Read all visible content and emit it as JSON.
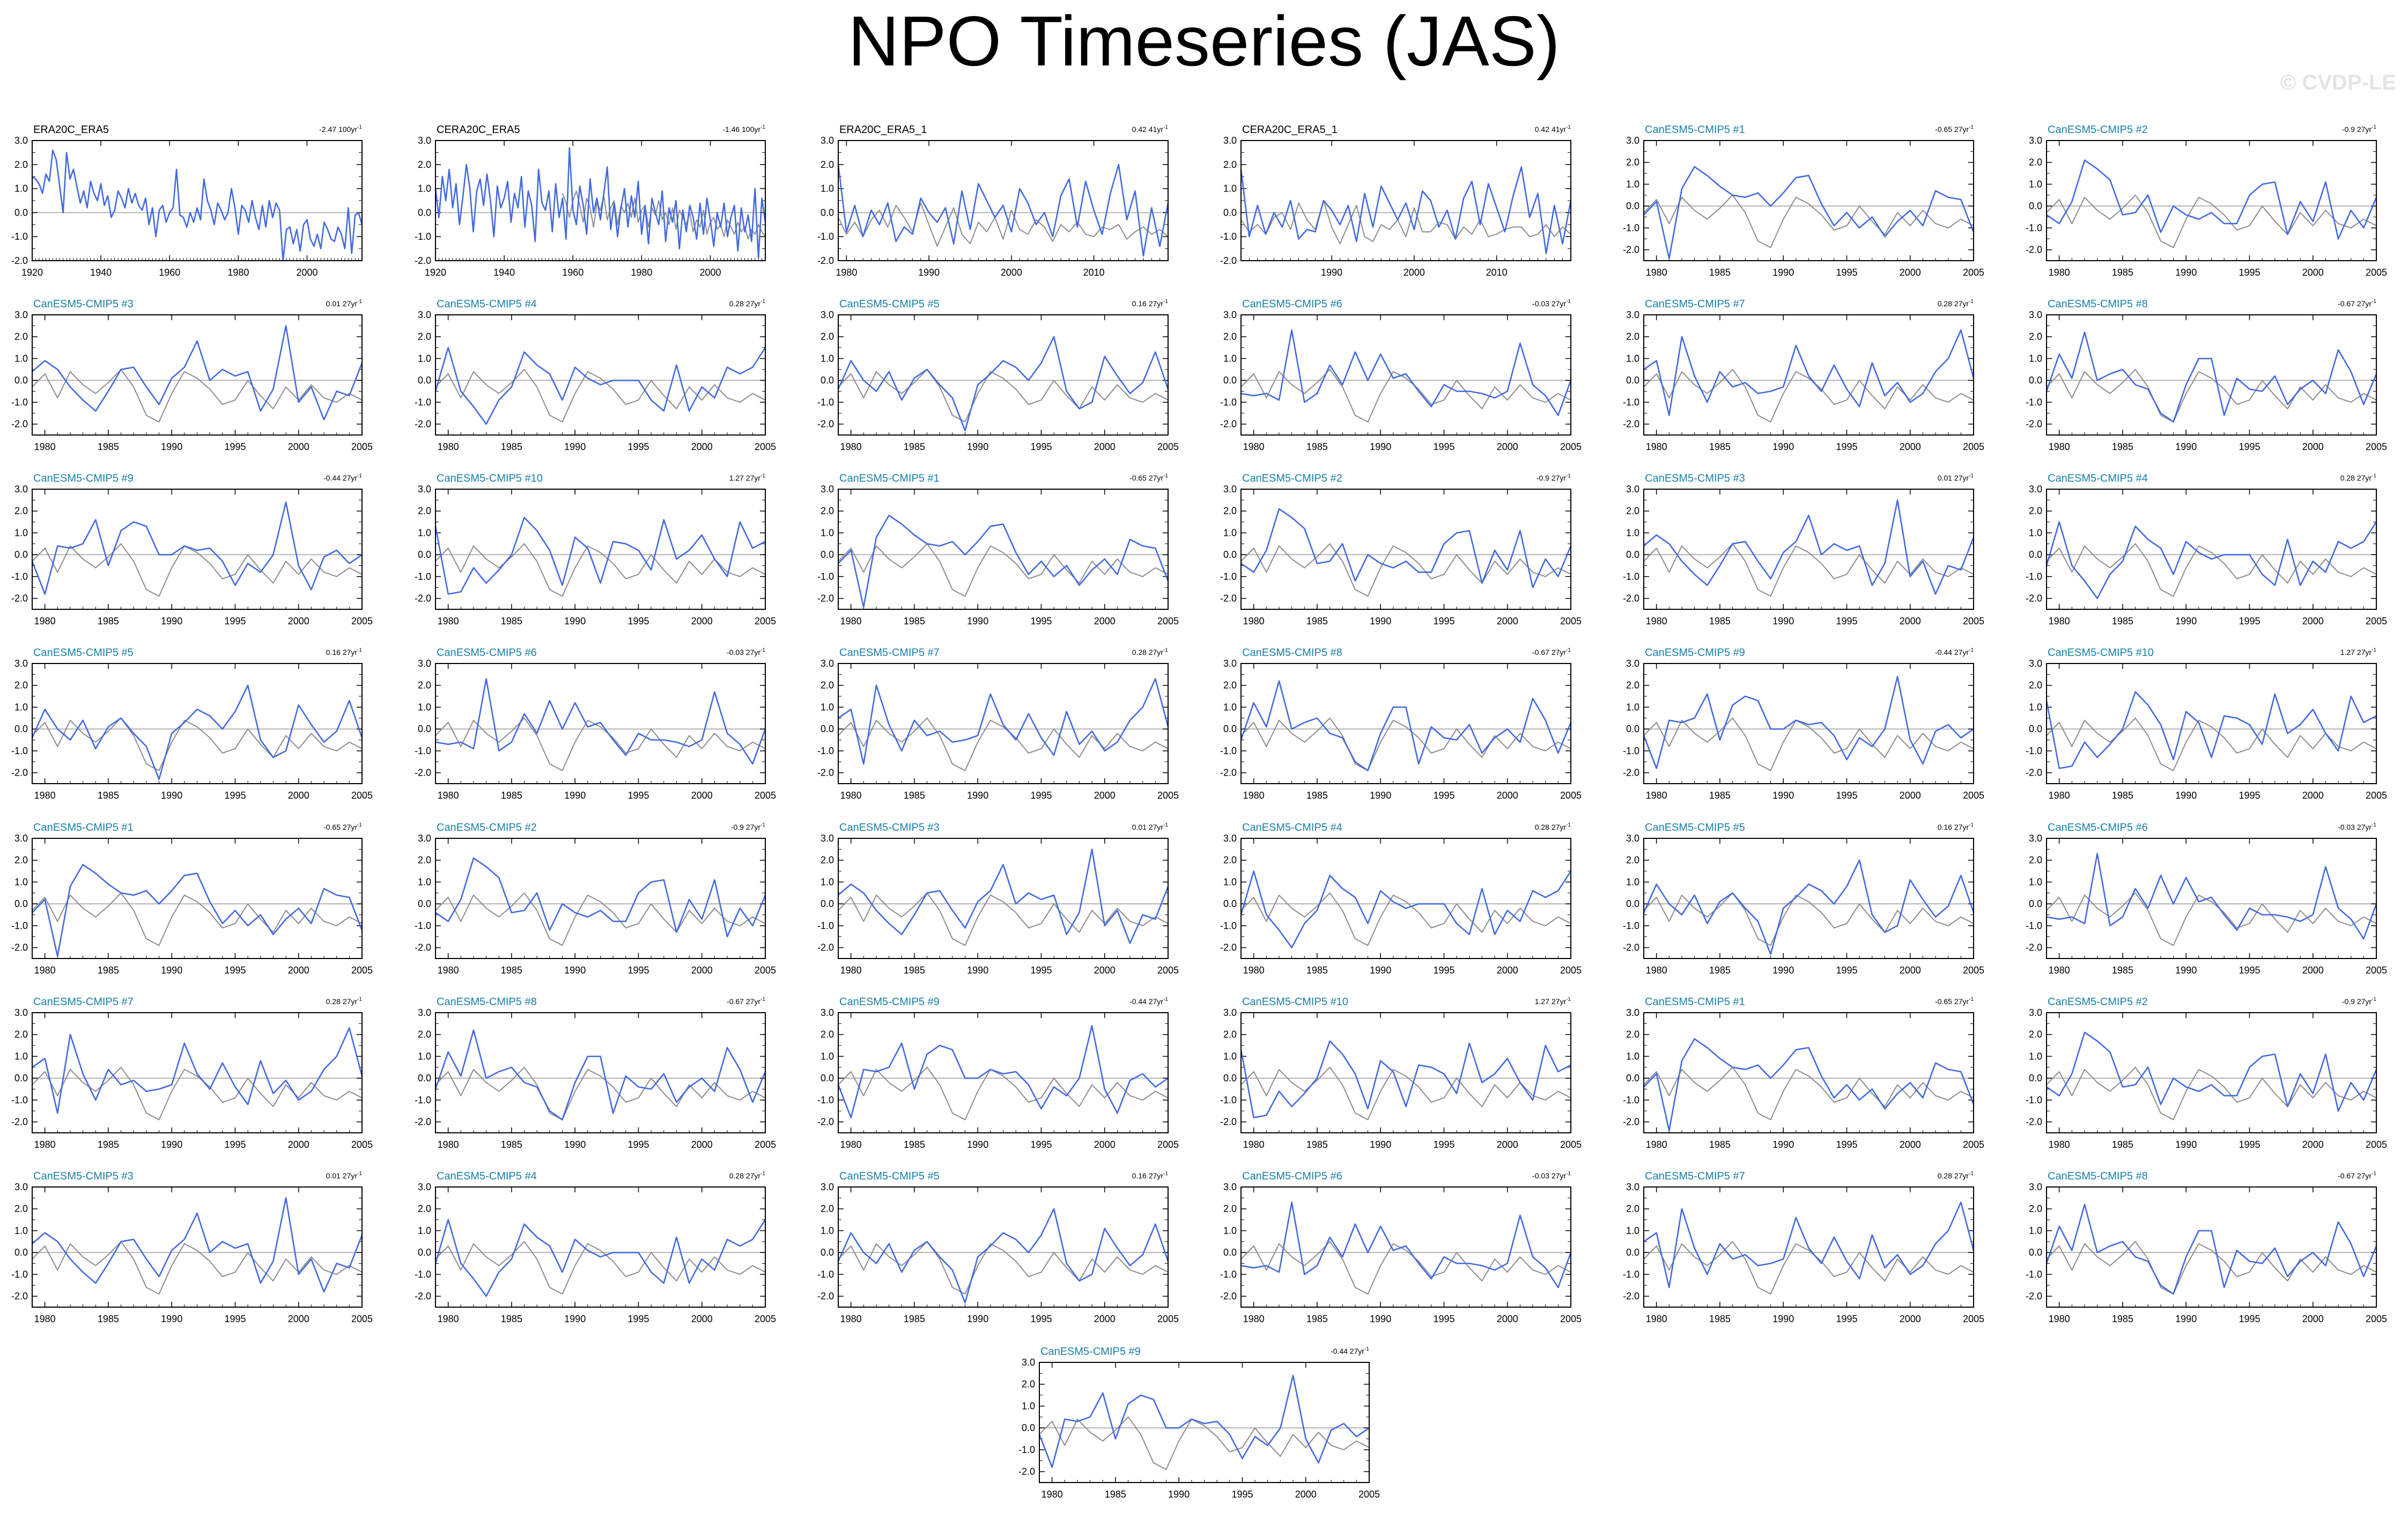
{
  "title": "NPO Timeseries (JAS)",
  "watermark": "© CVDP-LE",
  "colors": {
    "primary": "#4169e1",
    "reference": "#8c8c8c",
    "zero_line": "#b4b4b4",
    "title_obs": "#000000",
    "title_model": "#1a7fa8"
  },
  "chart_data": [
    {
      "type": "line",
      "title": "ERA20C_ERA5",
      "trend": "-2.47 100yr",
      "xlim": [
        1920,
        2016
      ],
      "ylim": [
        -2,
        3
      ],
      "xticks": [
        "1920",
        "1940",
        "1960",
        "1980",
        "2000"
      ],
      "yticks": [
        "3.0",
        "2.0",
        "1.0",
        "0.0",
        "-1.0",
        "-2.0"
      ],
      "series": [
        {
          "values": [
            1.5,
            1.4,
            1.2,
            0.8,
            1.6,
            1.3,
            2.6,
            2.2,
            1.1,
            0.0,
            2.5,
            1.4,
            1.8,
            1.1,
            0.4,
            0.9,
            0.2,
            1.3,
            0.8,
            0.5,
            1.2,
            0.3,
            0.7,
            -0.2,
            0.1,
            0.9,
            0.6,
            0.2,
            1.0,
            0.4,
            0.8,
            0.3,
            0.1,
            0.6,
            -0.5,
            0.2,
            -1.0,
            0.1,
            0.3,
            -0.4,
            0.0,
            0.2,
            1.8,
            -0.1,
            -0.2,
            -0.6,
            0.0,
            -0.4,
            0.2,
            -0.3,
            1.4,
            0.5,
            0.1,
            -0.5,
            0.4,
            0.1,
            -0.3,
            0.0,
            1.0,
            0.2,
            -0.9,
            0.3,
            0.1,
            -0.4,
            0.5,
            -0.2,
            -0.7,
            0.3,
            -0.6,
            0.5,
            -0.2,
            0.4,
            0.1,
            -2.0,
            -0.7,
            -0.6,
            -1.3,
            -0.7,
            -1.6,
            -0.5,
            -0.3,
            -1.1,
            -1.4,
            -0.9,
            -1.5,
            -0.4,
            -0.7,
            -1.1,
            -1.2,
            -0.6,
            -0.9,
            -1.5,
            0.2,
            -1.7,
            -0.1,
            0.0,
            -0.5
          ]
        }
      ]
    },
    {
      "type": "line",
      "title": "CERA20C_ERA5",
      "trend": "-1.46 100yr",
      "xlim": [
        1920,
        2016
      ],
      "ylim": [
        -2,
        3
      ],
      "xticks": [
        "1920",
        "1940",
        "1960",
        "1980",
        "2000"
      ],
      "yticks": [
        "3.0",
        "2.0",
        "1.0",
        "0.0",
        "-1.0",
        "-2.0"
      ],
      "series": [
        {
          "values": [
            1.0,
            -0.2,
            1.5,
            0.5,
            1.8,
            0.2,
            1.2,
            -0.5,
            0.7,
            2.0,
            1.0,
            -0.8,
            0.9,
            1.4,
            0.3,
            1.6,
            0.5,
            -1.0,
            1.1,
            0.2,
            0.6,
            1.3,
            -0.4,
            0.8,
            0.2,
            1.5,
            -0.6,
            0.9,
            0.3,
            -1.2,
            1.8,
            0.4,
            0.1,
            0.9,
            -0.8,
            1.2,
            -0.2,
            0.6,
            -1.1,
            2.7,
            0.1,
            -0.5,
            1.1,
            0.3,
            -0.9,
            1.4,
            0.0,
            0.6,
            -0.3,
            0.8,
            1.9,
            -0.7,
            0.4,
            -1.0,
            0.2,
            1.0,
            -0.6,
            0.7,
            -0.2,
            1.3,
            -0.9,
            0.3,
            -1.3,
            0.6,
            0.0,
            -0.5,
            0.9,
            -1.2,
            0.2,
            -0.4,
            0.5,
            -1.5,
            0.1,
            -0.8,
            0.3,
            -0.2,
            -1.1,
            0.4,
            -0.9,
            0.6,
            -0.3,
            -1.4,
            0.0,
            -0.6,
            0.4,
            -1.0,
            -0.2,
            0.3,
            -1.6,
            0.2,
            -0.8,
            -0.1,
            -1.2,
            1.0,
            -1.9,
            0.6,
            -0.4
          ]
        },
        {
          "values": [
            null,
            null,
            null,
            null,
            null,
            null,
            null,
            null,
            null,
            null,
            null,
            null,
            null,
            null,
            null,
            null,
            null,
            null,
            null,
            null,
            null,
            null,
            null,
            null,
            null,
            null,
            null,
            null,
            null,
            null,
            null,
            null,
            null,
            null,
            null,
            null,
            null,
            0.8,
            0.4,
            -0.2,
            0.5,
            0.9,
            0.3,
            -0.4,
            0.6,
            0.2,
            -0.6,
            0.4,
            0.1,
            0.7,
            -0.3,
            0.2,
            0.5,
            -0.5,
            0.3,
            0.0,
            0.4,
            -0.2,
            0.6,
            -0.4,
            0.1,
            0.3,
            -0.6,
            0.2,
            -0.1,
            0.5,
            -0.3,
            0.0,
            -0.5,
            0.2,
            -0.7,
            0.1,
            -0.2,
            -0.5,
            0.0,
            -0.8,
            -0.3,
            -0.6,
            0.1,
            -0.9,
            -0.4,
            -0.2,
            -0.7,
            -0.5,
            -1.0,
            -0.3,
            -0.6,
            -0.9,
            -0.4,
            -0.8,
            -0.6,
            -1.1,
            -0.7,
            -0.9,
            -0.5,
            -0.8,
            -1.0
          ]
        }
      ]
    },
    {
      "type": "line",
      "title": "ERA20C_ERA5_1",
      "trend": "0.42 41yr",
      "xlim": [
        1979,
        2019
      ],
      "ylim": [
        -2,
        3
      ],
      "xticks": [
        "1980",
        "1990",
        "2000",
        "2010"
      ],
      "yticks": [
        "3.0",
        "2.0",
        "1.0",
        "0.0",
        "-1.0",
        "-2.0"
      ],
      "series": [
        {
          "values": [
            2.0,
            -0.8,
            0.3,
            -1.0,
            0.1,
            -0.5,
            0.4,
            -1.2,
            -0.6,
            -0.9,
            0.6,
            0.0,
            -0.4,
            0.2,
            -1.3,
            0.9,
            -0.7,
            1.2,
            0.5,
            -0.2,
            0.3,
            -0.8,
            1.0,
            0.4,
            -0.5,
            0.0,
            -1.0,
            0.7,
            1.4,
            -0.6,
            1.3,
            0.1,
            -0.9,
            0.8,
            2.0,
            -0.3,
            0.9,
            -1.8,
            0.2,
            -1.4,
            0.4
          ]
        },
        {
          "values": [
            -0.2,
            -0.9,
            -0.4,
            -1.0,
            -0.3,
            0.1,
            -0.6,
            0.3,
            -0.2,
            -0.8,
            0.4,
            -0.5,
            -1.4,
            -0.6,
            0.2,
            -0.9,
            -1.3,
            -0.4,
            -0.8,
            -0.2,
            -1.1,
            0.1,
            -0.7,
            -0.9,
            -0.3,
            -0.6,
            -1.2,
            -0.5,
            -0.8,
            -0.4,
            -0.9,
            -1.0,
            -0.6,
            -0.7,
            -0.5,
            -1.1,
            -0.8,
            -0.6,
            -0.9,
            -0.7,
            -1.0
          ]
        }
      ]
    },
    {
      "type": "line",
      "title": "CERA20C_ERA5_1",
      "trend": "0.42 41yr",
      "xlim": [
        1979,
        2019
      ],
      "ylim": [
        -2,
        3
      ],
      "xticks": [
        "1990",
        "2000",
        "2010"
      ],
      "yticks": [
        "3.0",
        "2.0",
        "1.0",
        "0.0",
        "-1.0",
        "-2.0"
      ],
      "series": [
        {
          "values": [
            1.8,
            -1.0,
            0.3,
            -0.9,
            0.0,
            -0.6,
            0.5,
            -1.1,
            -0.7,
            -0.8,
            0.5,
            0.1,
            -0.5,
            0.3,
            -1.2,
            0.8,
            -0.6,
            1.1,
            0.4,
            -0.3,
            0.4,
            -0.7,
            0.9,
            0.5,
            -0.6,
            0.1,
            -1.1,
            0.6,
            1.3,
            -0.5,
            1.2,
            0.2,
            -0.8,
            0.7,
            1.9,
            -0.2,
            0.8,
            -1.7,
            0.3,
            -1.3,
            0.5
          ]
        },
        {
          "values": [
            -0.3,
            -0.8,
            -0.5,
            -0.9,
            -0.2,
            0.0,
            -0.7,
            0.4,
            -0.3,
            -0.7,
            0.5,
            -0.6,
            -1.3,
            -0.5,
            0.3,
            -1.0,
            -1.2,
            -0.5,
            -0.7,
            -0.3,
            -1.0,
            0.2,
            -0.8,
            -0.8,
            -0.4,
            -0.5,
            -1.1,
            -0.6,
            -0.9,
            -0.3,
            -1.0,
            -0.9,
            -0.7,
            -0.6,
            -0.6,
            -1.0,
            -0.9,
            -0.5,
            -1.0,
            -0.6,
            -0.9
          ]
        }
      ]
    }
  ],
  "model_panels": [
    {
      "title": "CanESM5-CMIP5 #1",
      "trend": "-0.65 27yr"
    },
    {
      "title": "CanESM5-CMIP5 #2",
      "trend": "-0.9 27yr"
    },
    {
      "title": "CanESM5-CMIP5 #3",
      "trend": "0.01 27yr"
    },
    {
      "title": "CanESM5-CMIP5 #4",
      "trend": "0.28 27yr"
    },
    {
      "title": "CanESM5-CMIP5 #5",
      "trend": "0.16 27yr"
    },
    {
      "title": "CanESM5-CMIP5 #6",
      "trend": "-0.03 27yr"
    },
    {
      "title": "CanESM5-CMIP5 #7",
      "trend": "0.28 27yr"
    },
    {
      "title": "CanESM5-CMIP5 #8",
      "trend": "-0.67 27yr"
    },
    {
      "title": "CanESM5-CMIP5 #9",
      "trend": "-0.44 27yr"
    },
    {
      "title": "CanESM5-CMIP5 #10",
      "trend": "1.27 27yr"
    },
    {
      "title": "CanESM5-CMIP5 #1",
      "trend": "-0.65 27yr"
    },
    {
      "title": "CanESM5-CMIP5 #2",
      "trend": "-0.9 27yr"
    },
    {
      "title": "CanESM5-CMIP5 #3",
      "trend": "0.01 27yr"
    },
    {
      "title": "CanESM5-CMIP5 #4",
      "trend": "0.28 27yr"
    },
    {
      "title": "CanESM5-CMIP5 #5",
      "trend": "0.16 27yr"
    },
    {
      "title": "CanESM5-CMIP5 #6",
      "trend": "-0.03 27yr"
    },
    {
      "title": "CanESM5-CMIP5 #7",
      "trend": "0.28 27yr"
    },
    {
      "title": "CanESM5-CMIP5 #8",
      "trend": "-0.67 27yr"
    },
    {
      "title": "CanESM5-CMIP5 #9",
      "trend": "-0.44 27yr"
    },
    {
      "title": "CanESM5-CMIP5 #10",
      "trend": "1.27 27yr"
    },
    {
      "title": "CanESM5-CMIP5 #1",
      "trend": "-0.65 27yr"
    },
    {
      "title": "CanESM5-CMIP5 #2",
      "trend": "-0.9 27yr"
    },
    {
      "title": "CanESM5-CMIP5 #3",
      "trend": "0.01 27yr"
    },
    {
      "title": "CanESM5-CMIP5 #4",
      "trend": "0.28 27yr"
    },
    {
      "title": "CanESM5-CMIP5 #5",
      "trend": "0.16 27yr"
    },
    {
      "title": "CanESM5-CMIP5 #6",
      "trend": "-0.03 27yr"
    },
    {
      "title": "CanESM5-CMIP5 #7",
      "trend": "0.28 27yr"
    },
    {
      "title": "CanESM5-CMIP5 #8",
      "trend": "-0.67 27yr"
    },
    {
      "title": "CanESM5-CMIP5 #9",
      "trend": "-0.44 27yr"
    },
    {
      "title": "CanESM5-CMIP5 #10",
      "trend": "1.27 27yr"
    },
    {
      "title": "CanESM5-CMIP5 #1",
      "trend": "-0.65 27yr"
    },
    {
      "title": "CanESM5-CMIP5 #2",
      "trend": "-0.9 27yr"
    },
    {
      "title": "CanESM5-CMIP5 #3",
      "trend": "0.01 27yr"
    },
    {
      "title": "CanESM5-CMIP5 #4",
      "trend": "0.28 27yr"
    },
    {
      "title": "CanESM5-CMIP5 #5",
      "trend": "0.16 27yr"
    },
    {
      "title": "CanESM5-CMIP5 #6",
      "trend": "-0.03 27yr"
    },
    {
      "title": "CanESM5-CMIP5 #7",
      "trend": "0.28 27yr"
    },
    {
      "title": "CanESM5-CMIP5 #8",
      "trend": "-0.67 27yr"
    },
    {
      "title": "CanESM5-CMIP5 #9",
      "trend": "-0.44 27yr"
    }
  ],
  "model_axis": {
    "type": "line",
    "xlim": [
      1979,
      2005
    ],
    "ylim": [
      -2.5,
      3
    ],
    "xticks": [
      "1980",
      "1985",
      "1990",
      "1995",
      "2000",
      "2005"
    ],
    "yticks": [
      "3.0",
      "2.0",
      "1.0",
      "0.0",
      "-1.0",
      "-2.0"
    ]
  },
  "members": {
    "CanESM5-CMIP5 #1": [
      -0.4,
      0.2,
      -2.4,
      0.8,
      1.8,
      1.4,
      0.9,
      0.5,
      0.4,
      0.6,
      0.0,
      0.6,
      1.3,
      1.4,
      0.1,
      -0.9,
      -0.3,
      -1.0,
      -0.5,
      -1.4,
      -0.7,
      -0.2,
      -0.9,
      0.7,
      0.4,
      0.3,
      -1.2
    ],
    "CanESM5-CMIP5 #2": [
      -0.4,
      -0.8,
      0.2,
      2.1,
      1.7,
      1.2,
      -0.4,
      -0.3,
      0.5,
      -1.2,
      0.0,
      -0.4,
      -0.6,
      -0.3,
      -0.8,
      -0.8,
      0.5,
      1.0,
      1.1,
      -1.3,
      0.2,
      -0.7,
      1.1,
      -1.5,
      -0.2,
      -1.0,
      0.4
    ],
    "CanESM5-CMIP5 #3": [
      0.4,
      0.9,
      0.5,
      -0.3,
      -0.9,
      -1.4,
      -0.5,
      0.5,
      0.6,
      -0.3,
      -1.1,
      0.1,
      0.6,
      1.8,
      0.0,
      0.5,
      0.2,
      0.4,
      -1.4,
      -0.4,
      2.5,
      -1.0,
      -0.3,
      -1.8,
      -0.5,
      -0.7,
      0.8
    ],
    "CanESM5-CMIP5 #4": [
      -0.5,
      1.5,
      -0.5,
      -1.2,
      -2.0,
      -0.9,
      -0.3,
      1.3,
      0.7,
      0.3,
      -0.9,
      0.6,
      0.1,
      -0.2,
      0.0,
      0.0,
      0.0,
      -0.9,
      -1.4,
      0.7,
      -1.4,
      -0.3,
      -0.8,
      0.6,
      0.3,
      0.6,
      1.5
    ],
    "CanESM5-CMIP5 #5": [
      -0.4,
      0.9,
      0.0,
      -0.5,
      0.4,
      -0.9,
      0.1,
      0.5,
      -0.2,
      -0.8,
      -2.3,
      -0.2,
      0.3,
      0.9,
      0.6,
      0.0,
      0.8,
      2.0,
      -0.5,
      -1.3,
      -1.0,
      1.1,
      0.2,
      -0.6,
      -0.1,
      1.3,
      -0.4
    ],
    "CanESM5-CMIP5 #6": [
      -0.6,
      -0.7,
      -0.6,
      -0.9,
      2.3,
      -1.0,
      -0.6,
      0.7,
      -0.2,
      1.3,
      0.0,
      1.2,
      0.1,
      0.3,
      -0.5,
      -1.2,
      -0.2,
      -0.5,
      -0.5,
      -0.6,
      -0.8,
      -0.5,
      1.7,
      -0.2,
      -0.7,
      -1.6,
      0.0
    ],
    "CanESM5-CMIP5 #7": [
      0.5,
      0.9,
      -1.6,
      2.0,
      0.2,
      -1.0,
      0.4,
      -0.3,
      -0.1,
      -0.6,
      -0.5,
      -0.3,
      1.6,
      0.2,
      -0.5,
      0.7,
      -0.4,
      -1.2,
      0.8,
      -0.7,
      -0.1,
      -1.0,
      -0.6,
      0.4,
      1.0,
      2.3,
      0.1
    ],
    "CanESM5-CMIP5 #8": [
      -0.5,
      1.2,
      0.1,
      2.2,
      0.0,
      0.3,
      0.5,
      -0.2,
      -0.4,
      -1.5,
      -1.9,
      -0.2,
      1.0,
      1.0,
      -1.6,
      0.1,
      -0.4,
      -0.5,
      0.2,
      -1.1,
      -0.4,
      0.0,
      -0.6,
      1.4,
      0.4,
      -1.1,
      0.3
    ],
    "CanESM5-CMIP5 #9": [
      -0.3,
      -1.8,
      0.4,
      0.3,
      0.5,
      1.6,
      -0.5,
      1.1,
      1.5,
      1.3,
      0.0,
      0.0,
      0.4,
      0.2,
      0.3,
      -0.3,
      -1.4,
      -0.4,
      -0.8,
      0.0,
      2.4,
      -0.5,
      -1.6,
      -0.1,
      0.2,
      -0.4,
      0.0
    ],
    "CanESM5-CMIP5 #10": [
      1.3,
      -1.8,
      -1.7,
      -0.6,
      -1.3,
      -0.7,
      0.0,
      1.7,
      1.1,
      0.2,
      -1.4,
      0.8,
      0.3,
      -1.3,
      0.6,
      0.5,
      0.2,
      -0.7,
      1.6,
      -0.2,
      0.2,
      0.9,
      -0.2,
      -1.0,
      1.5,
      0.3,
      0.6
    ],
    "reference": [
      -0.3,
      0.3,
      -0.8,
      0.4,
      -0.2,
      -0.6,
      -0.1,
      0.5,
      -0.3,
      -1.6,
      -1.9,
      -0.6,
      0.4,
      0.1,
      -0.4,
      -1.1,
      -0.9,
      0.0,
      -0.7,
      -1.3,
      -0.3,
      -0.9,
      -0.2,
      -0.8,
      -1.0,
      -0.6,
      -0.9
    ]
  }
}
